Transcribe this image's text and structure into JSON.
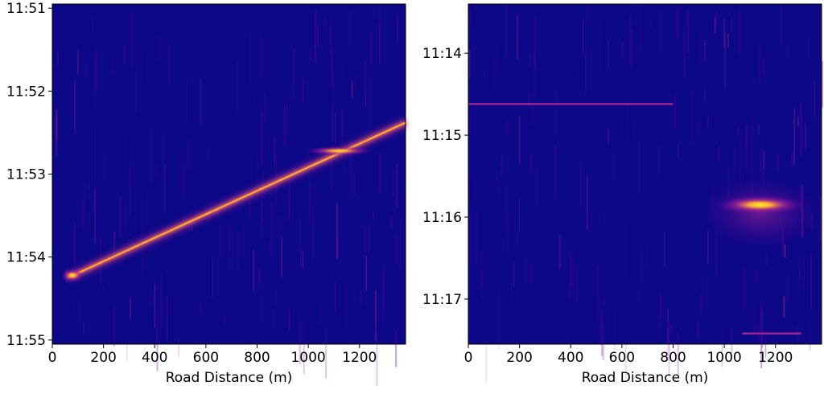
{
  "chart_data": [
    {
      "type": "heatmap",
      "title": "",
      "xlabel": "Road Distance (m)",
      "ylabel": "",
      "xlim": [
        0,
        1380
      ],
      "ylim_minutes": [
        710.95,
        715.05
      ],
      "x_ticks": [
        0,
        200,
        400,
        600,
        800,
        1000,
        1200
      ],
      "x_tick_labels": [
        "0",
        "200",
        "400",
        "600",
        "800",
        "1000",
        "1200"
      ],
      "y_ticks_minutes": [
        711,
        712,
        713,
        714,
        715
      ],
      "y_tick_labels": [
        "11:51",
        "11:52",
        "11:53",
        "11:54",
        "11:55"
      ],
      "y_inverted": true,
      "colormap": [
        "#0d0887",
        "#6a00a8",
        "#b12a90",
        "#e16462",
        "#fca636",
        "#f0f921"
      ],
      "features": [
        {
          "kind": "track",
          "from": {
            "x": 60,
            "t": 714.25
          },
          "to": {
            "x": 1380,
            "t": 712.38
          },
          "intensity": 1.0
        },
        {
          "kind": "hotspot",
          "x": 1120,
          "t": 712.72,
          "intensity": 0.9
        }
      ]
    },
    {
      "type": "heatmap",
      "title": "",
      "xlabel": "Road Distance (m)",
      "ylabel": "",
      "xlim": [
        0,
        1380
      ],
      "ylim_minutes": [
        673.4,
        677.55
      ],
      "x_ticks": [
        0,
        200,
        400,
        600,
        800,
        1000,
        1200
      ],
      "x_tick_labels": [
        "0",
        "200",
        "400",
        "600",
        "800",
        "1000",
        "1200"
      ],
      "y_ticks_minutes": [
        674,
        675,
        676,
        677
      ],
      "y_tick_labels": [
        "11:14",
        "11:15",
        "11:16",
        "11:17"
      ],
      "y_inverted": true,
      "colormap": [
        "#0d0887",
        "#6a00a8",
        "#b12a90",
        "#e16462",
        "#fca636",
        "#f0f921"
      ],
      "features": [
        {
          "kind": "hotspot",
          "x": 1140,
          "t": 675.85,
          "intensity": 1.0
        },
        {
          "kind": "line",
          "from": {
            "x": 0,
            "t": 674.62
          },
          "to": {
            "x": 800,
            "t": 674.62
          },
          "intensity": 0.4
        },
        {
          "kind": "line",
          "from": {
            "x": 1070,
            "t": 677.42
          },
          "to": {
            "x": 1300,
            "t": 677.42
          },
          "intensity": 0.45
        }
      ]
    }
  ]
}
